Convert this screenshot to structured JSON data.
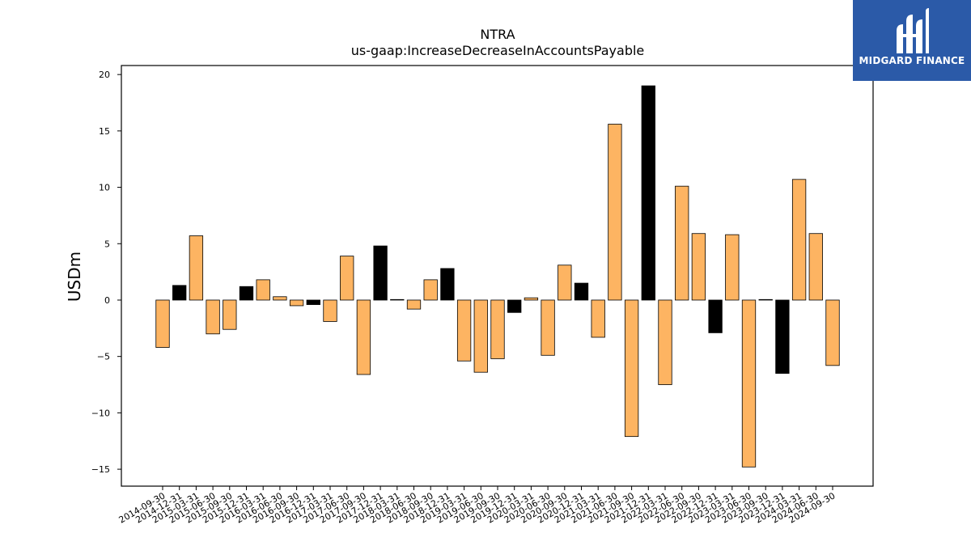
{
  "brand": {
    "name": "MIDGARD FINANCE"
  },
  "chart_data": {
    "type": "bar",
    "title": "NTRA",
    "subtitle": "us-gaap:IncreaseDecreaseInAccountsPayable",
    "xlabel": "",
    "ylabel": "USDm",
    "ylim": [
      -16.5,
      20.8
    ],
    "yticks": [
      -15,
      -10,
      -5,
      0,
      5,
      10,
      15,
      20
    ],
    "ytick_labels": [
      "−15",
      "−10",
      "−5",
      "0",
      "5",
      "10",
      "15",
      "20"
    ],
    "grid": false,
    "colors": {
      "default": "#fdb462",
      "highlight": "#000000",
      "edge": "#000000"
    },
    "categories": [
      "2014-09-30",
      "2014-12-31",
      "2015-03-31",
      "2015-06-30",
      "2015-09-30",
      "2015-12-31",
      "2016-03-31",
      "2016-06-30",
      "2016-09-30",
      "2016-12-31",
      "2017-03-31",
      "2017-06-30",
      "2017-09-30",
      "2017-12-31",
      "2018-03-31",
      "2018-06-30",
      "2018-09-30",
      "2018-12-31",
      "2019-03-31",
      "2019-06-30",
      "2019-09-30",
      "2019-12-31",
      "2020-03-31",
      "2020-06-30",
      "2020-09-30",
      "2020-12-31",
      "2021-03-31",
      "2021-06-30",
      "2021-09-30",
      "2021-12-31",
      "2022-03-31",
      "2022-06-30",
      "2022-09-30",
      "2022-12-31",
      "2023-03-31",
      "2023-06-30",
      "2023-09-30",
      "2023-12-31",
      "2024-03-31",
      "2024-06-30",
      "2024-09-30"
    ],
    "values": [
      -4.2,
      1.3,
      5.7,
      -3.0,
      -2.6,
      1.2,
      1.8,
      0.3,
      -0.5,
      -0.4,
      -1.9,
      3.9,
      -6.6,
      4.8,
      0.05,
      -0.8,
      1.8,
      2.8,
      -5.4,
      -6.4,
      -5.2,
      -1.1,
      0.2,
      -4.9,
      3.1,
      1.5,
      -3.3,
      15.6,
      -12.1,
      19.0,
      -7.5,
      10.1,
      5.9,
      -2.9,
      5.8,
      -14.8,
      0.05,
      -6.5,
      10.7,
      5.9,
      -5.8
    ],
    "highlight": [
      false,
      true,
      false,
      false,
      false,
      true,
      false,
      false,
      false,
      true,
      false,
      false,
      false,
      true,
      true,
      false,
      false,
      true,
      false,
      false,
      false,
      true,
      false,
      false,
      false,
      true,
      false,
      false,
      false,
      true,
      false,
      false,
      false,
      true,
      false,
      false,
      true,
      true,
      false,
      false,
      false
    ]
  }
}
